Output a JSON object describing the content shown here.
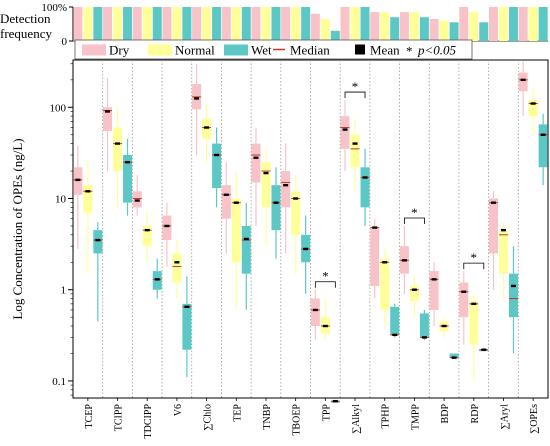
{
  "chart_data": [
    {
      "type": "bar",
      "panel": "detection-frequency",
      "ylabel_lines": [
        "Detection",
        "frequency"
      ],
      "ytick_labels": [
        "100%",
        "0"
      ],
      "ylim": [
        0,
        100
      ],
      "categories": [
        "TCEP",
        "TCIPP",
        "TDCIPP",
        "V6",
        "∑Chlo",
        "TEP",
        "TNBP",
        "TBOEP",
        "TPP",
        "∑Alkyl",
        "TPHP",
        "TMPP",
        "BDP",
        "RDP",
        "∑Aryl",
        "∑OPEs"
      ],
      "series": [
        {
          "name": "Dry",
          "values": [
            100,
            100,
            100,
            100,
            100,
            100,
            100,
            100,
            80,
            100,
            85,
            85,
            65,
            100,
            100,
            100
          ]
        },
        {
          "name": "Normal",
          "values": [
            100,
            100,
            100,
            100,
            100,
            100,
            100,
            100,
            65,
            100,
            85,
            85,
            60,
            85,
            100,
            100
          ]
        },
        {
          "name": "Wet",
          "values": [
            100,
            100,
            100,
            100,
            100,
            100,
            100,
            100,
            30,
            100,
            70,
            70,
            55,
            55,
            100,
            100
          ]
        }
      ]
    },
    {
      "type": "box",
      "panel": "concentration",
      "ylabel": "Log Concentration of OPEs (ng/L)",
      "yscale": "log",
      "ylim": [
        0.065,
        330
      ],
      "ytick_labels": [
        "0.1",
        "1",
        "10",
        "100"
      ],
      "legend": {
        "placement": "top",
        "items": [
          {
            "kind": "box",
            "label": "Dry",
            "color": "#F7C3C8"
          },
          {
            "kind": "box",
            "label": "Normal",
            "color": "#FFFF99"
          },
          {
            "kind": "box",
            "label": "Wet",
            "color": "#5CC8C5"
          },
          {
            "kind": "median-line",
            "label": "Median",
            "color": "#C0392B"
          },
          {
            "kind": "mean-square",
            "label": "Mean",
            "color": "#000000"
          },
          {
            "kind": "significance",
            "symbol": "*",
            "label": "p<0.05"
          }
        ]
      },
      "significance_marks": [
        {
          "category": "TPP",
          "label": "*"
        },
        {
          "category": "∑Alkyl",
          "label": "*"
        },
        {
          "category": "TMPP",
          "label": "*"
        },
        {
          "category": "RDP",
          "label": "*"
        }
      ],
      "categories": [
        "TCEP",
        "TCIPP",
        "TDCIPP",
        "V6",
        "∑Chlo",
        "TEP",
        "TNBP",
        "TBOEP",
        "TPP",
        "∑Alkyl",
        "TPHP",
        "TMPP",
        "BDP",
        "RDP",
        "∑Aryl",
        "∑OPEs"
      ],
      "series": [
        {
          "name": "Dry",
          "color": "#F7C3C8",
          "boxes": [
            {
              "min": 2.8,
              "q1": 11,
              "median": 16,
              "q3": 22,
              "max": 38,
              "mean": 16
            },
            {
              "min": 20,
              "q1": 55,
              "median": 92,
              "q3": 100,
              "max": 210,
              "mean": 90
            },
            {
              "min": 6.5,
              "q1": 8,
              "median": 10,
              "q3": 12,
              "max": 18,
              "mean": 9.5
            },
            {
              "min": 1.8,
              "q1": 3.5,
              "median": 5,
              "q3": 6.5,
              "max": 9,
              "mean": 5
            },
            {
              "min": 30,
              "q1": 95,
              "median": 130,
              "q3": 180,
              "max": 300,
              "mean": 125
            },
            {
              "min": 2.5,
              "q1": 6,
              "median": 11,
              "q3": 14,
              "max": 25,
              "mean": 11
            },
            {
              "min": 5,
              "q1": 15,
              "median": 30,
              "q3": 40,
              "max": 60,
              "mean": 28
            },
            {
              "min": 2.5,
              "q1": 8,
              "median": 15,
              "q3": 20,
              "max": 40,
              "mean": 14
            },
            {
              "min": 0.28,
              "q1": 0.4,
              "median": 0.6,
              "q3": 0.8,
              "max": 1,
              "mean": 0.6
            },
            {
              "min": 20,
              "q1": 35,
              "median": 60,
              "q3": 80,
              "max": 120,
              "mean": 57
            },
            {
              "min": 0.8,
              "q1": 1.1,
              "median": 4.8,
              "q3": 4.8,
              "max": 6,
              "mean": 4.8
            },
            {
              "min": 0.9,
              "q1": 1.5,
              "median": 2.1,
              "q3": 3,
              "max": 5,
              "mean": 2.1
            },
            {
              "min": 0.4,
              "q1": 0.6,
              "median": 1.3,
              "q3": 1.6,
              "max": 2,
              "mean": 1.3
            },
            {
              "min": 0.25,
              "q1": 0.5,
              "median": 0.95,
              "q3": 1.2,
              "max": 1.6,
              "mean": 0.95
            },
            {
              "min": 1,
              "q1": 2.5,
              "median": 9,
              "q3": 10,
              "max": 12,
              "mean": 9
            },
            {
              "min": 80,
              "q1": 150,
              "median": 200,
              "q3": 240,
              "max": 320,
              "mean": 200
            }
          ]
        },
        {
          "name": "Normal",
          "color": "#FFFF99",
          "boxes": [
            {
              "min": 1.5,
              "q1": 7,
              "median": 12,
              "q3": 14,
              "max": 26,
              "mean": 12
            },
            {
              "min": 8,
              "q1": 20,
              "median": 40,
              "q3": 60,
              "max": 100,
              "mean": 40
            },
            {
              "min": 2,
              "q1": 3,
              "median": 4.5,
              "q3": 5,
              "max": 7,
              "mean": 4.5
            },
            {
              "min": 0.8,
              "q1": 1.2,
              "median": 1.8,
              "q3": 2.5,
              "max": 3.5,
              "mean": 2
            },
            {
              "min": 25,
              "q1": 45,
              "median": 60,
              "q3": 75,
              "max": 110,
              "mean": 60
            },
            {
              "min": 0.6,
              "q1": 2,
              "median": 9,
              "q3": 10,
              "max": 20,
              "mean": 9
            },
            {
              "min": 3,
              "q1": 8,
              "median": 20,
              "q3": 25,
              "max": 35,
              "mean": 19
            },
            {
              "min": 1.5,
              "q1": 4,
              "median": 10,
              "q3": 12,
              "max": 18,
              "mean": 10
            },
            {
              "min": 0.28,
              "q1": 0.33,
              "median": 0.4,
              "q3": 0.5,
              "max": 0.8,
              "mean": 0.4
            },
            {
              "min": 12,
              "q1": 22,
              "median": 35,
              "q3": 50,
              "max": 75,
              "mean": 40
            },
            {
              "min": 0.4,
              "q1": 0.6,
              "median": 2,
              "q3": 2.2,
              "max": 2.8,
              "mean": 2
            },
            {
              "min": 0.5,
              "q1": 0.75,
              "median": 1,
              "q3": 1.1,
              "max": 1.4,
              "mean": 1
            },
            {
              "min": 0.3,
              "q1": 0.35,
              "median": 0.4,
              "q3": 0.45,
              "max": 0.5,
              "mean": 0.4
            },
            {
              "min": 0.1,
              "q1": 0.25,
              "median": 0.7,
              "q3": 0.75,
              "max": 0.9,
              "mean": 0.7
            },
            {
              "min": 0.8,
              "q1": 1.5,
              "median": 4,
              "q3": 4.5,
              "max": 5.5,
              "mean": 4.5
            },
            {
              "min": 50,
              "q1": 80,
              "median": 110,
              "q3": 120,
              "max": 160,
              "mean": 110
            }
          ]
        },
        {
          "name": "Wet",
          "color": "#5CC8C5",
          "boxes": [
            {
              "min": 0.45,
              "q1": 2.5,
              "median": 3.5,
              "q3": 4.5,
              "max": 5.5,
              "mean": 3.5
            },
            {
              "min": 6.5,
              "q1": 9,
              "median": 25,
              "q3": 30,
              "max": 45,
              "mean": 25
            },
            {
              "min": 0.8,
              "q1": 1,
              "median": 1.3,
              "q3": 1.6,
              "max": 2.2,
              "mean": 1.3
            },
            {
              "min": 0.11,
              "q1": 0.22,
              "median": 0.65,
              "q3": 0.7,
              "max": 1.4,
              "mean": 0.65
            },
            {
              "min": 8,
              "q1": 13,
              "median": 30,
              "q3": 40,
              "max": 60,
              "mean": 30
            },
            {
              "min": 0.6,
              "q1": 1.5,
              "median": 3.5,
              "q3": 5,
              "max": 9,
              "mean": 3.6
            },
            {
              "min": 2.2,
              "q1": 4.5,
              "median": 9,
              "q3": 14,
              "max": 22,
              "mean": 9
            },
            {
              "min": 0.9,
              "q1": 2,
              "median": 2.8,
              "q3": 4,
              "max": 6.5,
              "mean": 2.8
            },
            {
              "min": 0.06,
              "q1": 0.06,
              "median": 0.06,
              "q3": 0.06,
              "max": 0.06,
              "mean": 0.06
            },
            {
              "min": 5,
              "q1": 8,
              "median": 17,
              "q3": 22,
              "max": 35,
              "mean": 17
            },
            {
              "min": 0.3,
              "q1": 0.32,
              "median": 0.32,
              "q3": 0.65,
              "max": 0.7,
              "mean": 0.32
            },
            {
              "min": 0.28,
              "q1": 0.3,
              "median": 0.3,
              "q3": 0.55,
              "max": 0.6,
              "mean": 0.3
            },
            {
              "min": 0.18,
              "q1": 0.18,
              "median": 0.18,
              "q3": 0.2,
              "max": 0.2,
              "mean": 0.18
            },
            {
              "min": 0.22,
              "q1": 0.22,
              "median": 0.22,
              "q3": 0.22,
              "max": 0.22,
              "mean": 0.22
            },
            {
              "min": 0.2,
              "q1": 0.5,
              "median": 0.8,
              "q3": 1.5,
              "max": 3,
              "mean": 1.1
            },
            {
              "min": 14,
              "q1": 22,
              "median": 50,
              "q3": 65,
              "max": 85,
              "mean": 50
            }
          ]
        }
      ]
    }
  ]
}
